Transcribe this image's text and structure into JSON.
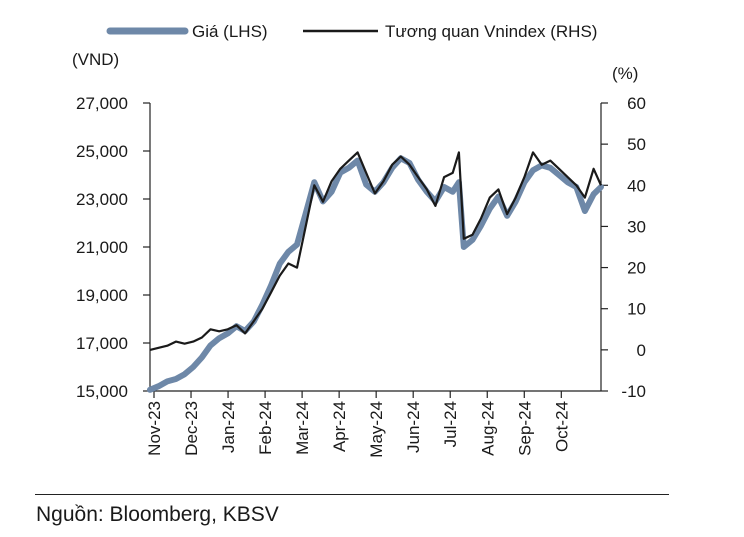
{
  "chart_data": {
    "type": "line",
    "legend": {
      "placement": "top"
    },
    "left_unit": "(VND)",
    "right_unit": "(%)",
    "y_left": {
      "min": 15000,
      "max": 27000,
      "ticks": [
        15000,
        17000,
        19000,
        21000,
        23000,
        25000,
        27000
      ],
      "tick_labels": [
        "15,000",
        "17,000",
        "19,000",
        "21,000",
        "23,000",
        "25,000",
        "27,000"
      ]
    },
    "y_right": {
      "min": -10,
      "max": 60,
      "ticks": [
        -10,
        0,
        10,
        20,
        30,
        40,
        50,
        60
      ],
      "tick_labels": [
        "-10",
        "0",
        "10",
        "20",
        "30",
        "40",
        "50",
        "60"
      ]
    },
    "x_tick_labels": [
      "Nov-23",
      "Dec-23",
      "Jan-24",
      "Feb-24",
      "Mar-24",
      "Apr-24",
      "May-24",
      "Jun-24",
      "Jul-24",
      "Aug-24",
      "Sep-24",
      "Oct-24"
    ],
    "grid": false,
    "series": [
      {
        "name": "Giá (LHS)",
        "axis": "left",
        "color": "#6e88a8",
        "values": [
          [
            "2023-11-01",
            15050
          ],
          [
            "2023-11-08",
            15200
          ],
          [
            "2023-11-15",
            15400
          ],
          [
            "2023-11-22",
            15500
          ],
          [
            "2023-11-29",
            15700
          ],
          [
            "2023-12-06",
            16000
          ],
          [
            "2023-12-13",
            16400
          ],
          [
            "2023-12-20",
            16900
          ],
          [
            "2023-12-27",
            17200
          ],
          [
            "2024-01-03",
            17400
          ],
          [
            "2024-01-10",
            17700
          ],
          [
            "2024-01-17",
            17500
          ],
          [
            "2024-01-24",
            17900
          ],
          [
            "2024-01-31",
            18600
          ],
          [
            "2024-02-07",
            19400
          ],
          [
            "2024-02-14",
            20300
          ],
          [
            "2024-02-21",
            20800
          ],
          [
            "2024-02-28",
            21100
          ],
          [
            "2024-03-06",
            22400
          ],
          [
            "2024-03-13",
            23700
          ],
          [
            "2024-03-20",
            22900
          ],
          [
            "2024-03-27",
            23300
          ],
          [
            "2024-04-03",
            24100
          ],
          [
            "2024-04-10",
            24300
          ],
          [
            "2024-04-17",
            24600
          ],
          [
            "2024-04-24",
            23600
          ],
          [
            "2024-05-01",
            23300
          ],
          [
            "2024-05-08",
            23700
          ],
          [
            "2024-05-15",
            24300
          ],
          [
            "2024-05-22",
            24700
          ],
          [
            "2024-05-29",
            24500
          ],
          [
            "2024-06-05",
            23800
          ],
          [
            "2024-06-12",
            23300
          ],
          [
            "2024-06-19",
            22900
          ],
          [
            "2024-06-26",
            23500
          ],
          [
            "2024-07-03",
            23300
          ],
          [
            "2024-07-08",
            23700
          ],
          [
            "2024-07-12",
            21000
          ],
          [
            "2024-07-19",
            21300
          ],
          [
            "2024-07-26",
            21900
          ],
          [
            "2024-08-02",
            22600
          ],
          [
            "2024-08-09",
            23100
          ],
          [
            "2024-08-16",
            22300
          ],
          [
            "2024-08-23",
            22900
          ],
          [
            "2024-08-30",
            23700
          ],
          [
            "2024-09-06",
            24200
          ],
          [
            "2024-09-13",
            24400
          ],
          [
            "2024-09-20",
            24300
          ],
          [
            "2024-09-27",
            24000
          ],
          [
            "2024-10-04",
            23700
          ],
          [
            "2024-10-11",
            23500
          ],
          [
            "2024-10-18",
            22500
          ],
          [
            "2024-10-25",
            23200
          ],
          [
            "2024-10-31",
            23500
          ]
        ]
      },
      {
        "name": "Tương quan Vnindex (RHS)",
        "axis": "right",
        "color": "#1a1a1a",
        "values": [
          [
            "2023-11-01",
            0
          ],
          [
            "2023-11-08",
            0.5
          ],
          [
            "2023-11-15",
            1
          ],
          [
            "2023-11-22",
            2
          ],
          [
            "2023-11-29",
            1.5
          ],
          [
            "2023-12-06",
            2
          ],
          [
            "2023-12-13",
            3
          ],
          [
            "2023-12-20",
            5
          ],
          [
            "2023-12-27",
            4.5
          ],
          [
            "2024-01-03",
            5
          ],
          [
            "2024-01-10",
            6
          ],
          [
            "2024-01-17",
            4
          ],
          [
            "2024-01-24",
            7
          ],
          [
            "2024-01-31",
            10
          ],
          [
            "2024-02-07",
            14
          ],
          [
            "2024-02-14",
            18
          ],
          [
            "2024-02-21",
            21
          ],
          [
            "2024-02-28",
            20
          ],
          [
            "2024-03-06",
            30
          ],
          [
            "2024-03-13",
            40
          ],
          [
            "2024-03-20",
            36
          ],
          [
            "2024-03-27",
            41
          ],
          [
            "2024-04-03",
            44
          ],
          [
            "2024-04-10",
            46
          ],
          [
            "2024-04-17",
            48
          ],
          [
            "2024-04-24",
            43
          ],
          [
            "2024-05-01",
            38
          ],
          [
            "2024-05-08",
            41
          ],
          [
            "2024-05-15",
            45
          ],
          [
            "2024-05-22",
            47
          ],
          [
            "2024-05-29",
            45
          ],
          [
            "2024-06-05",
            42
          ],
          [
            "2024-06-12",
            39
          ],
          [
            "2024-06-19",
            35
          ],
          [
            "2024-06-26",
            42
          ],
          [
            "2024-07-03",
            43
          ],
          [
            "2024-07-08",
            48
          ],
          [
            "2024-07-12",
            27
          ],
          [
            "2024-07-19",
            28
          ],
          [
            "2024-07-26",
            32
          ],
          [
            "2024-08-02",
            37
          ],
          [
            "2024-08-09",
            39
          ],
          [
            "2024-08-16",
            33
          ],
          [
            "2024-08-23",
            37
          ],
          [
            "2024-08-30",
            42
          ],
          [
            "2024-09-06",
            48
          ],
          [
            "2024-09-13",
            45
          ],
          [
            "2024-09-20",
            46
          ],
          [
            "2024-09-27",
            44
          ],
          [
            "2024-10-04",
            42
          ],
          [
            "2024-10-11",
            40
          ],
          [
            "2024-10-18",
            37
          ],
          [
            "2024-10-25",
            44
          ],
          [
            "2024-10-31",
            40
          ]
        ]
      }
    ]
  },
  "source": "Nguồn: Bloomberg, KBSV"
}
